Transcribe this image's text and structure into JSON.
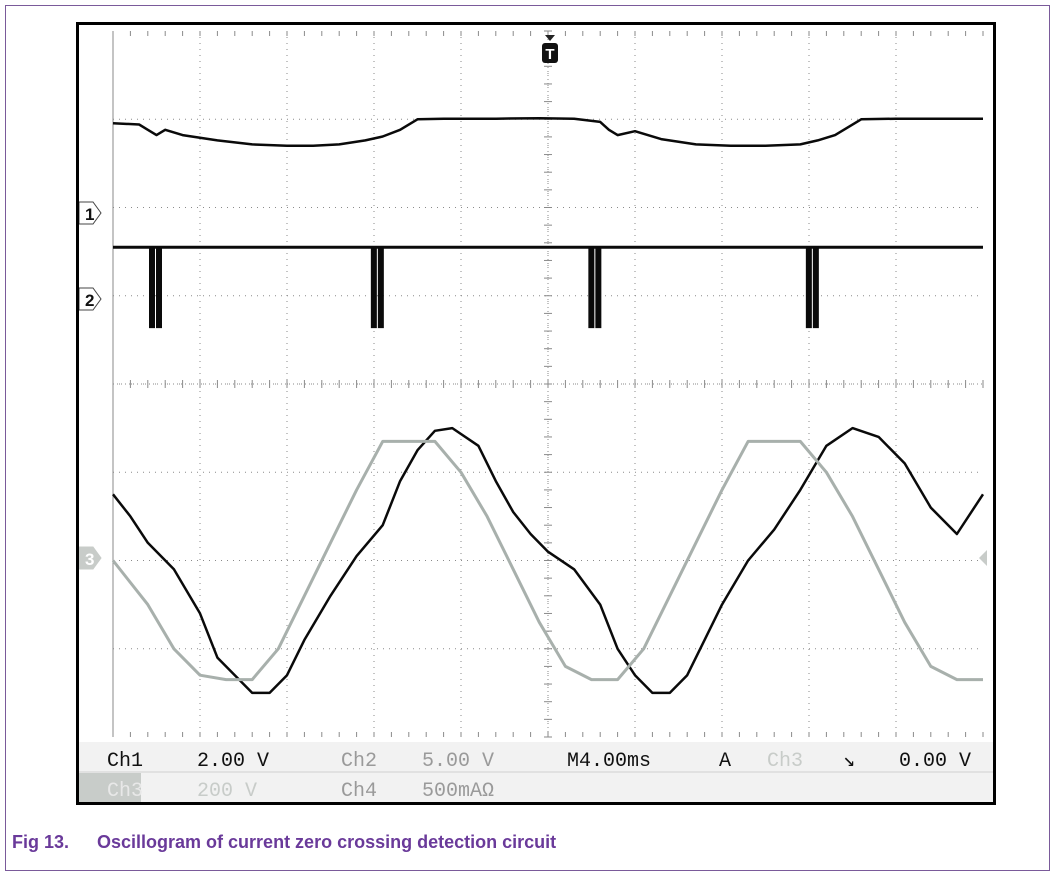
{
  "figure": {
    "number": "Fig 13.",
    "caption": "Oscillogram of current zero crossing detection circuit"
  },
  "scope": {
    "trigger_marker": "T",
    "channel_markers": [
      "1",
      "2",
      "3"
    ],
    "readouts": {
      "ch1_label": "Ch1",
      "ch1_value": "2.00 V",
      "ch2_label": "Ch2",
      "ch2_value": "5.00 V",
      "timebase": "M4.00ms",
      "trigger_mode": "A",
      "trigger_source": "Ch3",
      "trigger_slope": "↘",
      "trigger_level": "0.00 V",
      "ch3_label": "Ch3",
      "ch3_value": "200 V",
      "ch4_label": "Ch4",
      "ch4_value": "500mAΩ"
    },
    "colors": {
      "background": "#ffffff",
      "grid": "#8a8a8a",
      "trace_dark": "#0a0a0a",
      "trace_light": "#a8b0ac",
      "readout_bg": "#f2f2f2",
      "caption": "#6a3a9a"
    }
  },
  "chart_data": {
    "type": "line",
    "grid": true,
    "x_divisions": 10,
    "y_divisions": 8,
    "xlabel": "",
    "ylabel": "",
    "series": [
      {
        "trace": "top-waveform",
        "color": "#0a0a0a",
        "x_div": [
          0,
          0.3,
          0.4,
          0.5,
          0.6,
          0.8,
          1.2,
          1.6,
          2.0,
          2.3,
          2.6,
          2.9,
          3.1,
          3.3,
          3.5,
          3.8,
          4.1,
          4.4,
          4.9,
          5.3,
          5.6,
          5.7,
          5.8,
          6.0,
          6.3,
          6.7,
          7.1,
          7.5,
          7.9,
          8.1,
          8.3,
          8.6,
          9.0,
          9.6,
          10.0
        ],
        "y_div": [
          0.85,
          0.8,
          0.6,
          0.4,
          0.6,
          0.4,
          0.2,
          0.05,
          0.0,
          0.0,
          0.05,
          0.2,
          0.35,
          0.6,
          1.0,
          1.02,
          1.02,
          1.02,
          1.04,
          1.02,
          0.9,
          0.6,
          0.4,
          0.55,
          0.25,
          0.05,
          0.0,
          0.0,
          0.05,
          0.2,
          0.4,
          1.0,
          1.02,
          1.02,
          1.02
        ]
      },
      {
        "trace": "pulse-train",
        "channel": "1",
        "color": "#0a0a0a",
        "baseline_div": 0,
        "pulse_x_div": [
          0.5,
          3.05,
          5.55,
          8.05
        ],
        "pulse_depth_div": 0.9
      },
      {
        "trace": "current-sine",
        "channel": "3",
        "color": "#0a0a0a",
        "x_div": [
          0,
          0.2,
          0.4,
          0.7,
          1.0,
          1.2,
          1.4,
          1.6,
          1.8,
          2.0,
          2.2,
          2.5,
          2.8,
          3.1,
          3.3,
          3.5,
          3.7,
          3.9,
          4.2,
          4.4,
          4.6,
          4.8,
          5.0,
          5.3,
          5.6,
          5.8,
          6.0,
          6.2,
          6.4,
          6.6,
          6.8,
          7.0,
          7.3,
          7.6,
          7.9,
          8.2,
          8.5,
          8.8,
          9.1,
          9.4,
          9.7,
          10.0
        ],
        "y_div": [
          0.75,
          0.5,
          0.2,
          -0.1,
          -0.6,
          -1.1,
          -1.3,
          -1.5,
          -1.5,
          -1.3,
          -0.9,
          -0.4,
          0.05,
          0.4,
          0.9,
          1.25,
          1.47,
          1.5,
          1.3,
          0.9,
          0.55,
          0.3,
          0.1,
          -0.1,
          -0.5,
          -1.0,
          -1.3,
          -1.5,
          -1.5,
          -1.3,
          -0.9,
          -0.5,
          0.0,
          0.35,
          0.8,
          1.3,
          1.5,
          1.4,
          1.1,
          0.6,
          0.3,
          0.75
        ]
      },
      {
        "trace": "voltage-sine",
        "channel": "3",
        "color": "#a8b0ac",
        "x_div": [
          0,
          0.4,
          0.7,
          1.0,
          1.3,
          1.6,
          1.9,
          2.2,
          2.5,
          2.8,
          3.1,
          3.4,
          3.7,
          4.0,
          4.3,
          4.6,
          4.9,
          5.2,
          5.5,
          5.8,
          6.1,
          6.4,
          6.7,
          7.0,
          7.3,
          7.6,
          7.9,
          8.2,
          8.5,
          8.8,
          9.1,
          9.4,
          9.7,
          10.0
        ],
        "y_div": [
          0.0,
          -0.5,
          -1.0,
          -1.3,
          -1.35,
          -1.35,
          -1.0,
          -0.4,
          0.2,
          0.8,
          1.35,
          1.35,
          1.35,
          1.0,
          0.5,
          -0.1,
          -0.7,
          -1.2,
          -1.35,
          -1.35,
          -1.0,
          -0.4,
          0.2,
          0.8,
          1.35,
          1.35,
          1.35,
          1.0,
          0.5,
          -0.1,
          -0.7,
          -1.2,
          -1.35,
          -1.35
        ]
      }
    ]
  }
}
